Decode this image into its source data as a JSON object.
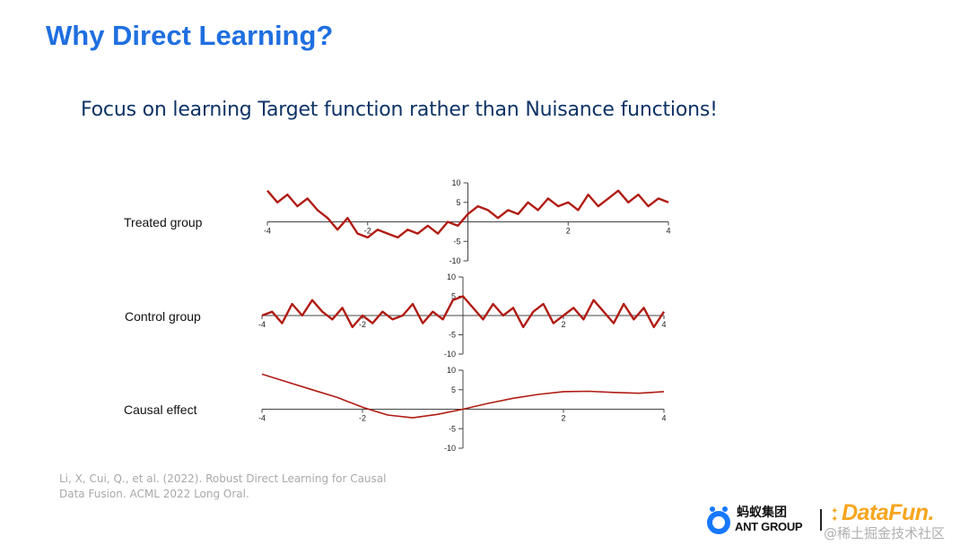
{
  "slide": {
    "title": "Why Direct Learning?",
    "subtitle": "Focus on learning Target function rather than Nuisance functions!",
    "citation": "Li, X, Cui, Q., et al. (2022). Robust Direct Learning for Causal Data Fusion. ACML 2022 Long Oral."
  },
  "logos": {
    "ant_cn": "蚂蚁集团",
    "ant_en": "ANT GROUP",
    "datafun": "DataFun.",
    "watermark": "@稀土掘金技术社区"
  },
  "colors": {
    "title": "#1f6fe0",
    "subtitle": "#0d3366",
    "series": "#b01c14",
    "datafun": "#f7a51c"
  },
  "chart_data": [
    {
      "type": "line",
      "row_label": "Treated group",
      "xlim": [
        -4,
        4
      ],
      "ylim": [
        -10,
        10
      ],
      "x_ticks": [
        -4,
        -2,
        2,
        4
      ],
      "y_ticks": [
        10,
        5,
        -5,
        -10
      ],
      "series": [
        {
          "x": [
            -4,
            -3.8,
            -3.6,
            -3.4,
            -3.2,
            -3,
            -2.8,
            -2.6,
            -2.4,
            -2.2,
            -2,
            -1.8,
            -1.6,
            -1.4,
            -1.2,
            -1,
            -0.8,
            -0.6,
            -0.4,
            -0.2,
            0,
            0.2,
            0.4,
            0.6,
            0.8,
            1,
            1.2,
            1.4,
            1.6,
            1.8,
            2,
            2.2,
            2.4,
            2.6,
            2.8,
            3,
            3.2,
            3.4,
            3.6,
            3.8,
            4
          ],
          "values": [
            8,
            5,
            7,
            4,
            6,
            3,
            1,
            -2,
            1,
            -3,
            -4,
            -2,
            -3,
            -4,
            -2,
            -3,
            -1,
            -3,
            0,
            -1,
            2,
            4,
            3,
            1,
            3,
            2,
            5,
            3,
            6,
            4,
            5,
            3,
            7,
            4,
            6,
            8,
            5,
            7,
            4,
            6,
            5
          ]
        }
      ]
    },
    {
      "type": "line",
      "row_label": "Control group",
      "xlim": [
        -4,
        4
      ],
      "ylim": [
        -10,
        10
      ],
      "x_ticks": [
        -4,
        -2,
        2,
        4
      ],
      "y_ticks": [
        10,
        5,
        -5,
        -10
      ],
      "series": [
        {
          "x": [
            -4,
            -3.8,
            -3.6,
            -3.4,
            -3.2,
            -3,
            -2.8,
            -2.6,
            -2.4,
            -2.2,
            -2,
            -1.8,
            -1.6,
            -1.4,
            -1.2,
            -1,
            -0.8,
            -0.6,
            -0.4,
            -0.2,
            0,
            0.2,
            0.4,
            0.6,
            0.8,
            1,
            1.2,
            1.4,
            1.6,
            1.8,
            2,
            2.2,
            2.4,
            2.6,
            2.8,
            3,
            3.2,
            3.4,
            3.6,
            3.8,
            4
          ],
          "values": [
            0,
            1,
            -2,
            3,
            0,
            4,
            1,
            -1,
            2,
            -3,
            0,
            -2,
            1,
            -1,
            0,
            3,
            -2,
            1,
            -1,
            4,
            5,
            2,
            -1,
            3,
            0,
            2,
            -3,
            1,
            3,
            -2,
            0,
            2,
            -1,
            4,
            1,
            -2,
            3,
            -1,
            2,
            -3,
            1
          ]
        }
      ]
    },
    {
      "type": "line",
      "row_label": "Causal effect",
      "xlim": [
        -4,
        4
      ],
      "ylim": [
        -10,
        10
      ],
      "x_ticks": [
        -4,
        -2,
        2,
        4
      ],
      "y_ticks": [
        10,
        5,
        -5,
        -10
      ],
      "series": [
        {
          "x": [
            -4,
            -3.5,
            -3,
            -2.5,
            -2,
            -1.5,
            -1,
            -0.5,
            0,
            0.5,
            1,
            1.5,
            2,
            2.5,
            3,
            3.5,
            4
          ],
          "values": [
            9,
            7,
            5,
            3,
            0.5,
            -1.5,
            -2.2,
            -1.3,
            0,
            1.5,
            2.8,
            3.8,
            4.5,
            4.6,
            4.3,
            4.1,
            4.5
          ]
        }
      ]
    }
  ]
}
